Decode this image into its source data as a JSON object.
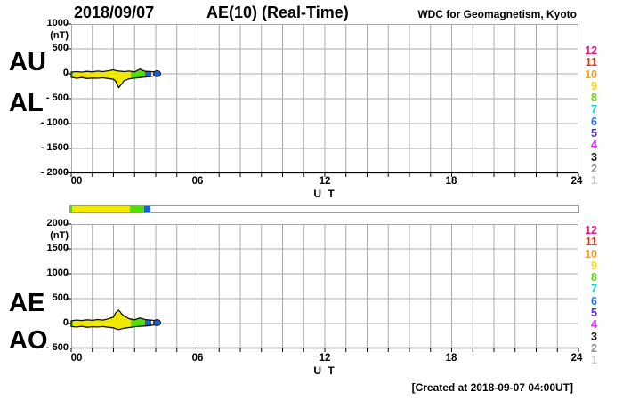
{
  "header": {
    "date": "2018/09/07",
    "title": "AE(10) (Real-Time)",
    "source": "WDC for Geomagnetism, Kyoto"
  },
  "footer": {
    "created": "[Created at 2018-09-07 04:00UT]"
  },
  "axis": {
    "x_ticks": [
      "00",
      "06",
      "12",
      "18",
      "24"
    ],
    "x_label": "U T"
  },
  "top_chart": {
    "index_upper": "AU",
    "index_lower": "AL",
    "unit": "(nT)",
    "y_tick_labels": [
      "1000",
      "500",
      "0",
      "- 500",
      "- 1000",
      "- 1500",
      "- 2000"
    ]
  },
  "bottom_chart": {
    "index_upper": "AE",
    "index_lower": "AO",
    "unit": "(nT)",
    "y_tick_labels": [
      "2000",
      "1500",
      "1000",
      "500",
      "0",
      "- 500"
    ]
  },
  "station_scale": {
    "values": [
      "12",
      "11",
      "10",
      "9",
      "8",
      "7",
      "6",
      "5",
      "4",
      "3",
      "2",
      "1"
    ],
    "colors": [
      "#ee1478",
      "#ff2a00",
      "#ff9c00",
      "#f0e000",
      "#58dd00",
      "#00ddcc",
      "#2470ff",
      "#5128e8",
      "#d428f0",
      "#111111",
      "#909090",
      "#c8c8c8"
    ]
  },
  "availability_bar": {
    "total_hours": 24,
    "segments": [
      {
        "stations": 8,
        "start_hour": 0,
        "end_hour": 0.1,
        "color": "#58dd00"
      },
      {
        "stations": 9,
        "start_hour": 0.1,
        "end_hour": 2.82,
        "color": "#f0e800"
      },
      {
        "stations": 8,
        "start_hour": 2.82,
        "end_hour": 3.49,
        "color": "#58dd00"
      },
      {
        "stations": 6,
        "start_hour": 3.49,
        "end_hour": 3.79,
        "color": "#1a5fd6"
      }
    ]
  },
  "chart_data": [
    {
      "type": "area",
      "title": "AU / AL band (top panel)",
      "xlabel": "U T",
      "ylabel": "(nT)",
      "ylim": [
        -2000,
        1000
      ],
      "x_range_hours": [
        0,
        24
      ],
      "y_grid_step": 500,
      "x_grid_step_hours": 1,
      "hours": [
        0,
        0.25,
        0.5,
        0.75,
        1,
        1.25,
        1.5,
        1.75,
        2,
        2.1,
        2.25,
        2.4,
        2.5,
        2.75,
        3,
        3.25,
        3.5,
        3.75,
        4
      ],
      "series": [
        {
          "name": "AU",
          "values": [
            35,
            45,
            35,
            50,
            40,
            55,
            45,
            60,
            80,
            65,
            55,
            50,
            45,
            55,
            40,
            95,
            50,
            45,
            40
          ]
        },
        {
          "name": "AL",
          "values": [
            -70,
            -90,
            -75,
            -95,
            -85,
            -90,
            -80,
            -95,
            -110,
            -150,
            -280,
            -200,
            -140,
            -100,
            -85,
            -75,
            -65,
            -55,
            -35
          ]
        }
      ]
    },
    {
      "type": "area",
      "title": "AE / AO band (bottom panel)",
      "xlabel": "U T",
      "ylabel": "(nT)",
      "ylim": [
        -500,
        2000
      ],
      "x_range_hours": [
        0,
        24
      ],
      "y_grid_step": 500,
      "x_grid_step_hours": 1,
      "hours": [
        0,
        0.25,
        0.5,
        0.75,
        1,
        1.25,
        1.5,
        1.75,
        2,
        2.1,
        2.25,
        2.4,
        2.5,
        2.75,
        3,
        3.25,
        3.5,
        3.75,
        4
      ],
      "series": [
        {
          "name": "AE",
          "values": [
            55,
            70,
            60,
            75,
            65,
            80,
            70,
            95,
            130,
            215,
            270,
            190,
            150,
            95,
            75,
            110,
            80,
            70,
            60
          ]
        },
        {
          "name": "AO",
          "values": [
            -60,
            -70,
            -55,
            -75,
            -65,
            -70,
            -60,
            -75,
            -85,
            -105,
            -120,
            -105,
            -95,
            -80,
            -65,
            -55,
            -50,
            -40,
            -25
          ]
        }
      ]
    }
  ]
}
